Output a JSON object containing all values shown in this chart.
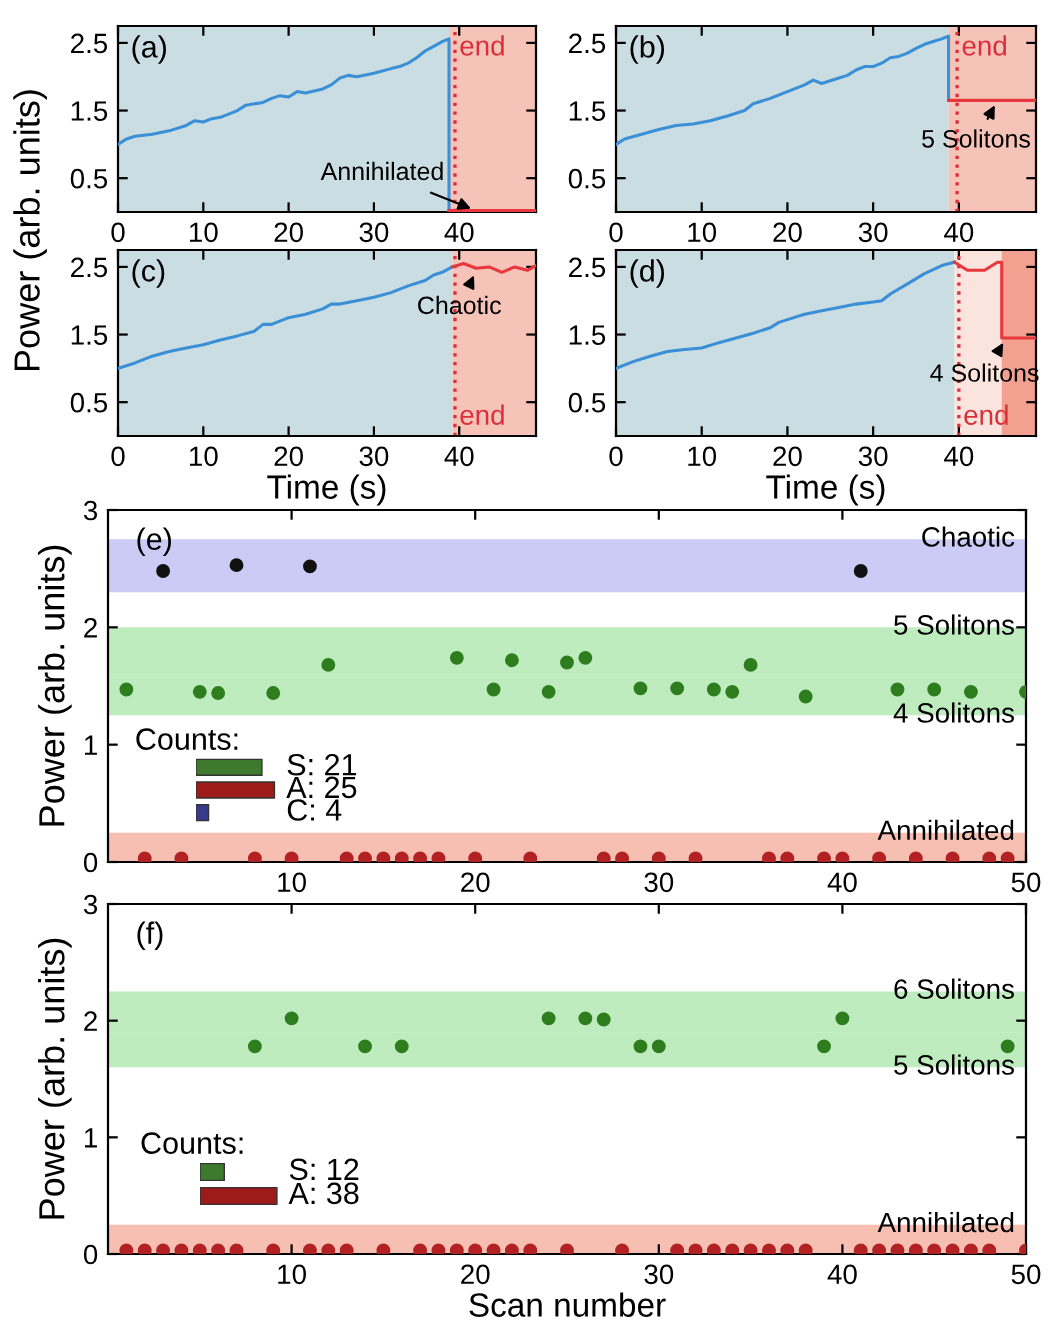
{
  "chart_data": [
    {
      "type": "line",
      "title": "(a)",
      "xlim": [
        0,
        49
      ],
      "ylim": [
        0,
        2.75
      ],
      "xticks": [
        0,
        10,
        20,
        30,
        40
      ],
      "yticks": [
        0.5,
        1.5,
        2.5
      ],
      "ylabel": "Power (arb. units)",
      "series": [
        {
          "color": "#3a8fd6",
          "x": [
            0,
            1,
            2,
            4,
            6,
            8,
            9,
            10,
            11,
            12,
            14,
            15,
            17,
            18,
            19,
            20,
            21,
            22,
            24,
            25,
            26,
            27,
            28,
            30,
            32,
            33,
            34,
            35,
            36,
            37,
            38,
            38.8,
            38.8
          ],
          "values": [
            1.0,
            1.08,
            1.12,
            1.15,
            1.2,
            1.28,
            1.35,
            1.33,
            1.38,
            1.4,
            1.5,
            1.58,
            1.62,
            1.68,
            1.72,
            1.7,
            1.78,
            1.76,
            1.82,
            1.88,
            1.98,
            2.02,
            2.0,
            2.05,
            2.12,
            2.15,
            2.2,
            2.28,
            2.38,
            2.45,
            2.52,
            2.56,
            0.0
          ]
        },
        {
          "color": "#e8383d",
          "x": [
            38.8,
            49
          ],
          "values": [
            0.02,
            0.02
          ]
        }
      ],
      "bands": [
        {
          "axis": "x",
          "from": 0,
          "to": 38.8,
          "color": "#c9dde3"
        },
        {
          "axis": "x",
          "from": 38.8,
          "to": 49,
          "color": "#f6c3b8"
        }
      ],
      "ref_lines": [
        {
          "axis": "x",
          "value": 39.5,
          "label": "end",
          "color": "#d9303a",
          "line_style": "dotted"
        }
      ],
      "annotations": [
        {
          "text": "Annihilated",
          "x": 42,
          "y": 0.02
        }
      ]
    },
    {
      "type": "line",
      "title": "(b)",
      "xlim": [
        0,
        49
      ],
      "ylim": [
        0,
        2.75
      ],
      "xticks": [
        0,
        10,
        20,
        30,
        40
      ],
      "yticks": [
        0.5,
        1.5,
        2.5
      ],
      "series": [
        {
          "color": "#3a8fd6",
          "x": [
            0,
            1,
            3,
            5,
            7,
            9,
            11,
            13,
            15,
            16,
            18,
            20,
            22,
            23,
            24,
            26,
            27,
            28,
            29,
            30,
            31,
            32,
            33,
            34,
            35,
            36,
            37,
            38,
            38.8,
            38.8
          ],
          "values": [
            1.0,
            1.08,
            1.15,
            1.22,
            1.28,
            1.3,
            1.35,
            1.42,
            1.5,
            1.6,
            1.68,
            1.78,
            1.88,
            1.95,
            1.9,
            1.98,
            2.02,
            2.1,
            2.15,
            2.15,
            2.2,
            2.28,
            2.3,
            2.35,
            2.42,
            2.48,
            2.52,
            2.56,
            2.6,
            1.65
          ]
        },
        {
          "color": "#e8383d",
          "x": [
            38.8,
            49
          ],
          "values": [
            1.65,
            1.65
          ]
        }
      ],
      "bands": [
        {
          "axis": "x",
          "from": 0,
          "to": 38.8,
          "color": "#c9dde3"
        },
        {
          "axis": "x",
          "from": 38.8,
          "to": 49,
          "color": "#f6c3b8"
        }
      ],
      "ref_lines": [
        {
          "axis": "x",
          "value": 39.8,
          "label": "end",
          "color": "#d9303a",
          "line_style": "dotted"
        }
      ],
      "annotations": [
        {
          "text": "5 Solitons",
          "x": 44.5,
          "y": 1.65
        }
      ]
    },
    {
      "type": "line",
      "title": "(c)",
      "xlim": [
        0,
        49
      ],
      "ylim": [
        0,
        2.75
      ],
      "xticks": [
        0,
        10,
        20,
        30,
        40
      ],
      "yticks": [
        0.5,
        1.5,
        2.5
      ],
      "xlabel": "Time (s)",
      "series": [
        {
          "color": "#3a8fd6",
          "x": [
            0,
            2,
            4,
            6,
            8,
            10,
            12,
            14,
            16,
            17,
            18,
            20,
            22,
            24,
            25,
            26,
            28,
            30,
            32,
            34,
            36,
            37,
            38,
            39.2
          ],
          "values": [
            1.0,
            1.08,
            1.18,
            1.25,
            1.3,
            1.35,
            1.42,
            1.48,
            1.55,
            1.65,
            1.65,
            1.75,
            1.8,
            1.88,
            1.95,
            1.95,
            2.0,
            2.05,
            2.12,
            2.22,
            2.3,
            2.38,
            2.42,
            2.5
          ]
        },
        {
          "color": "#e8383d",
          "x": [
            39.2,
            40.5,
            42,
            43.5,
            45,
            46.5,
            48,
            49
          ],
          "values": [
            2.5,
            2.55,
            2.48,
            2.5,
            2.42,
            2.5,
            2.45,
            2.52
          ]
        }
      ],
      "bands": [
        {
          "axis": "x",
          "from": 0,
          "to": 39.2,
          "color": "#c9dde3"
        },
        {
          "axis": "x",
          "from": 39.2,
          "to": 49,
          "color": "#f6c3b8"
        }
      ],
      "ref_lines": [
        {
          "axis": "x",
          "value": 39.5,
          "label": "end",
          "color": "#d9303a",
          "line_style": "dotted"
        }
      ],
      "annotations": [
        {
          "text": "Chaotic",
          "x": 42,
          "y": 2.45
        }
      ]
    },
    {
      "type": "line",
      "title": "(d)",
      "xlim": [
        0,
        49
      ],
      "ylim": [
        0,
        2.75
      ],
      "xticks": [
        0,
        10,
        20,
        30,
        40
      ],
      "yticks": [
        0.5,
        1.5,
        2.5
      ],
      "xlabel": "Time (s)",
      "series": [
        {
          "color": "#3a8fd6",
          "x": [
            0,
            2,
            4,
            6,
            8,
            10,
            12,
            14,
            16,
            18,
            19,
            20,
            22,
            24,
            26,
            28,
            30,
            31,
            32,
            34,
            36,
            38,
            39.5
          ],
          "values": [
            1.0,
            1.1,
            1.18,
            1.25,
            1.28,
            1.3,
            1.38,
            1.45,
            1.52,
            1.6,
            1.68,
            1.72,
            1.8,
            1.85,
            1.9,
            1.95,
            1.98,
            2.0,
            2.1,
            2.25,
            2.4,
            2.52,
            2.57
          ]
        },
        {
          "color": "#e8383d",
          "x": [
            39.5,
            41,
            43,
            44.5,
            45,
            45,
            49
          ],
          "values": [
            2.57,
            2.45,
            2.45,
            2.57,
            2.57,
            1.45,
            1.45
          ]
        }
      ],
      "bands": [
        {
          "axis": "x",
          "from": 0,
          "to": 39.5,
          "color": "#c9dde3"
        },
        {
          "axis": "x",
          "from": 39.5,
          "to": 45,
          "color": "#fbe3de"
        },
        {
          "axis": "x",
          "from": 45,
          "to": 49,
          "color": "#f2a090"
        }
      ],
      "ref_lines": [
        {
          "axis": "x",
          "value": 40,
          "label": "end",
          "color": "#d9303a",
          "line_style": "dotted"
        }
      ],
      "annotations": [
        {
          "text": "4 Solitons",
          "x": 45.5,
          "y": 1.45
        }
      ]
    },
    {
      "type": "scatter",
      "title": "(e)",
      "xlim": [
        0,
        50
      ],
      "ylim": [
        0,
        3
      ],
      "xticks": [
        10,
        20,
        30,
        40,
        50
      ],
      "yticks": [
        0,
        1,
        2,
        3
      ],
      "ylabel": "Power (arb. units)",
      "marker": "circle",
      "series": [
        {
          "color": "#2e7d1e",
          "x": [
            1,
            5,
            6,
            9,
            12,
            19,
            21,
            22,
            24,
            25,
            26,
            29,
            31,
            33,
            34,
            35,
            38,
            43,
            45,
            47,
            50
          ],
          "values": [
            1.47,
            1.45,
            1.44,
            1.44,
            1.68,
            1.74,
            1.47,
            1.72,
            1.45,
            1.7,
            1.74,
            1.48,
            1.48,
            1.47,
            1.45,
            1.68,
            1.41,
            1.47,
            1.47,
            1.45,
            1.45
          ]
        },
        {
          "color": "#b22222",
          "x": [
            2,
            4,
            8,
            10,
            13,
            14,
            15,
            16,
            17,
            18,
            20,
            23,
            27,
            28,
            30,
            32,
            36,
            37,
            39,
            40,
            42,
            44,
            46,
            48,
            49
          ],
          "values": [
            0.03,
            0.03,
            0.03,
            0.03,
            0.03,
            0.03,
            0.03,
            0.03,
            0.03,
            0.03,
            0.03,
            0.03,
            0.03,
            0.03,
            0.03,
            0.03,
            0.03,
            0.03,
            0.03,
            0.03,
            0.03,
            0.03,
            0.03,
            0.03,
            0.03
          ]
        },
        {
          "color": "#111111",
          "x": [
            3,
            7,
            11,
            41
          ],
          "values": [
            2.48,
            2.53,
            2.52,
            2.48
          ]
        }
      ],
      "bands": [
        {
          "axis": "y",
          "from": 2.3,
          "to": 2.75,
          "label": "Chaotic",
          "color": "#b9b9f2"
        },
        {
          "axis": "y",
          "from": 1.6,
          "to": 2.0,
          "label": "5 Solitons",
          "color": "#a8e6a8"
        },
        {
          "axis": "y",
          "from": 1.25,
          "to": 1.6,
          "label": "4 Solitons",
          "color": "#a8e6a8"
        },
        {
          "axis": "y",
          "from": 0,
          "to": 0.25,
          "label": "Annihilated",
          "color": "#f4a898"
        }
      ]
    },
    {
      "type": "bar",
      "orientation": "horizontal",
      "title": "Counts:",
      "categories": [
        null,
        null,
        null
      ],
      "values": [
        21,
        25,
        4
      ],
      "colors": [
        "#3d7a2e",
        "#9e1b1b",
        "#3a3a8c"
      ],
      "value_labels": [
        "S: 21",
        "A: 25",
        "C: 4"
      ]
    },
    {
      "type": "scatter",
      "title": "(f)",
      "xlim": [
        0,
        50
      ],
      "ylim": [
        0,
        3
      ],
      "xticks": [
        10,
        20,
        30,
        40,
        50
      ],
      "yticks": [
        0,
        1,
        2,
        3
      ],
      "ylabel": "Power (arb. units)",
      "xlabel": "Scan number",
      "marker": "circle",
      "series": [
        {
          "color": "#2e7d1e",
          "x": [
            8,
            10,
            14,
            16,
            24,
            26,
            27,
            29,
            30,
            39,
            40,
            49
          ],
          "values": [
            1.78,
            2.02,
            1.78,
            1.78,
            2.02,
            2.02,
            2.01,
            1.78,
            1.78,
            1.78,
            2.02,
            1.78
          ]
        },
        {
          "color": "#b22222",
          "x": [
            1,
            2,
            3,
            4,
            5,
            6,
            7,
            9,
            11,
            12,
            13,
            15,
            17,
            18,
            19,
            20,
            21,
            22,
            23,
            25,
            28,
            31,
            32,
            33,
            34,
            35,
            36,
            37,
            38,
            41,
            42,
            43,
            44,
            45,
            46,
            47,
            48,
            50
          ],
          "values": [
            0.03,
            0.03,
            0.03,
            0.03,
            0.03,
            0.03,
            0.03,
            0.03,
            0.03,
            0.03,
            0.03,
            0.03,
            0.03,
            0.03,
            0.03,
            0.03,
            0.03,
            0.03,
            0.03,
            0.03,
            0.03,
            0.03,
            0.03,
            0.03,
            0.03,
            0.03,
            0.03,
            0.03,
            0.03,
            0.03,
            0.03,
            0.03,
            0.03,
            0.03,
            0.03,
            0.03,
            0.03,
            0.03
          ]
        }
      ],
      "bands": [
        {
          "axis": "y",
          "from": 1.9,
          "to": 2.25,
          "label": "6 Solitons",
          "color": "#a8e6a8"
        },
        {
          "axis": "y",
          "from": 1.6,
          "to": 1.9,
          "label": "5 Solitons",
          "color": "#a8e6a8"
        },
        {
          "axis": "y",
          "from": 0,
          "to": 0.25,
          "label": "Annihilated",
          "color": "#f4a898"
        }
      ]
    },
    {
      "type": "bar",
      "orientation": "horizontal",
      "title": "Counts:",
      "categories": [
        null,
        null
      ],
      "values": [
        12,
        38
      ],
      "colors": [
        "#3d7a2e",
        "#9e1b1b"
      ],
      "value_labels": [
        "S: 12",
        "A: 38"
      ]
    }
  ]
}
